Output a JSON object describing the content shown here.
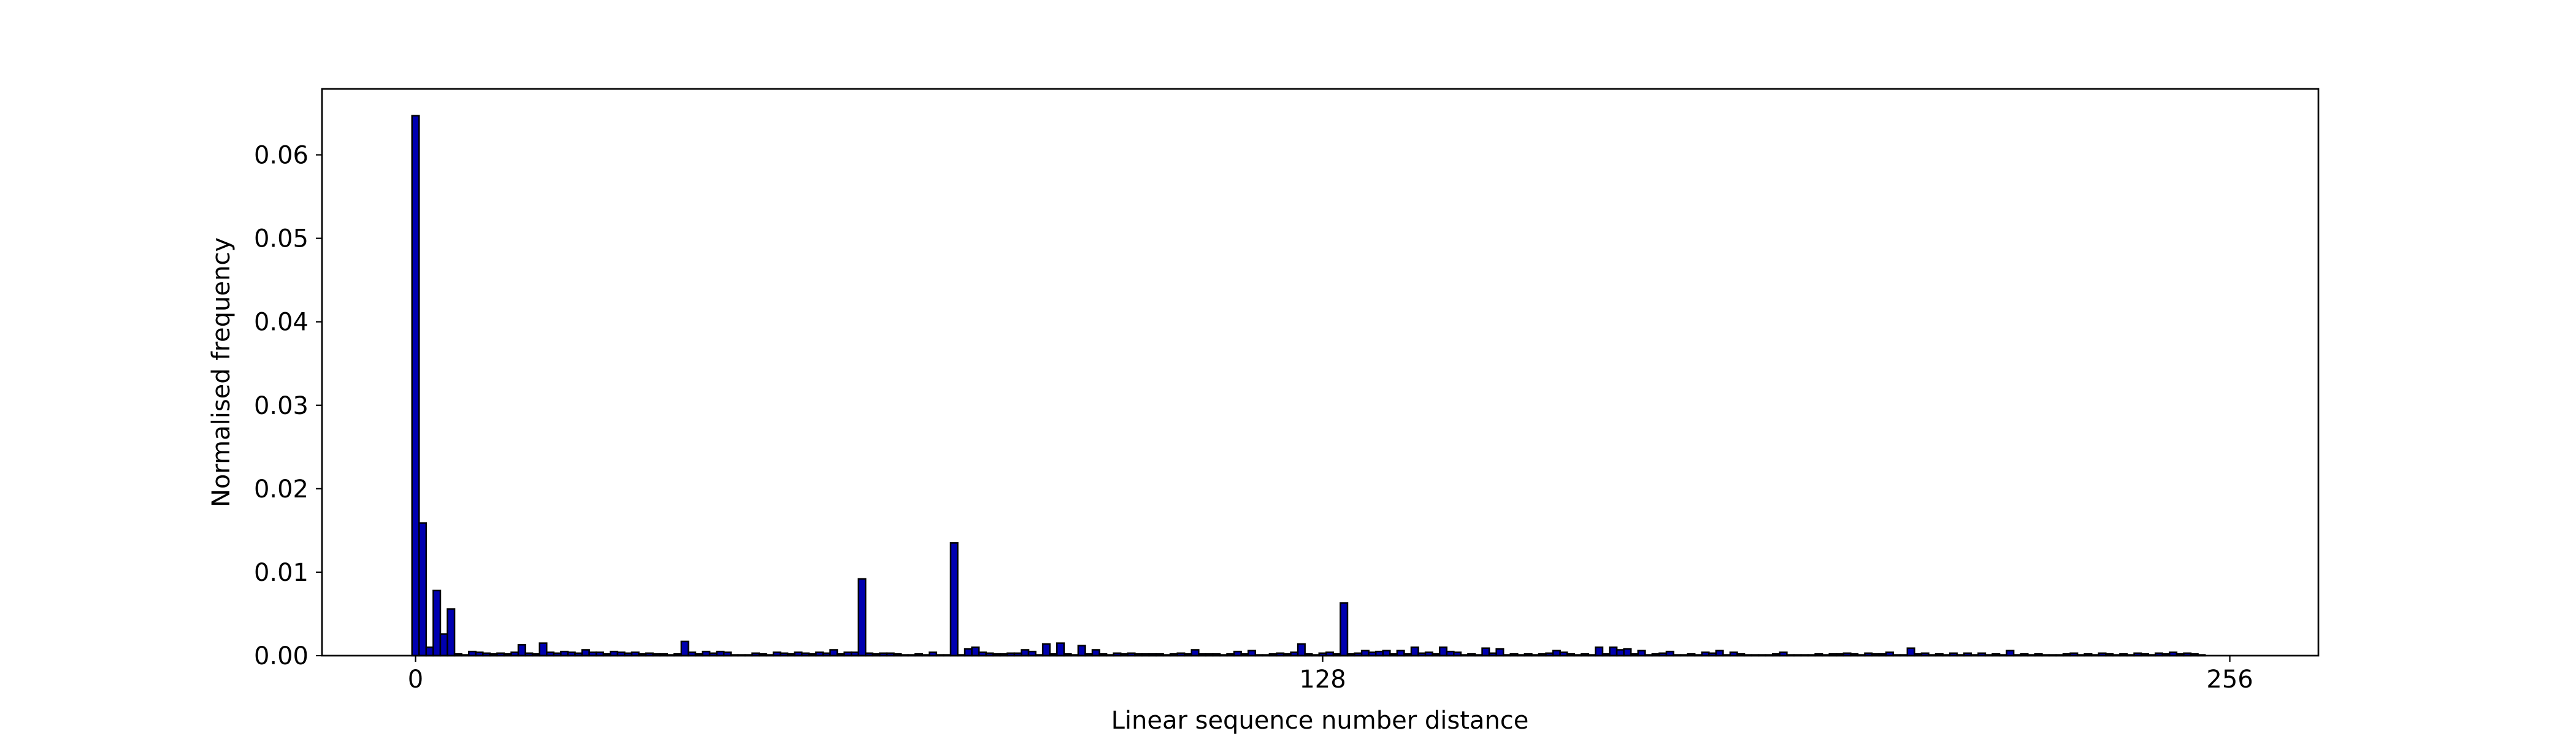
{
  "chart_data": {
    "type": "histogram",
    "x_label": "Linear sequence number distance",
    "y_label": "Normalised frequency",
    "color": "#0000b0",
    "edge_color": "#000000",
    "bins": [
      -0.5,
      0.5,
      1.5,
      2.5,
      3.5,
      4.5,
      5.5,
      6.5,
      7.5,
      8.5,
      9.5,
      10.5,
      11.5,
      12.5,
      13.5,
      14.5,
      15.5,
      16.5,
      17.5,
      18.5,
      19.5,
      20.5,
      21.5,
      22.5,
      23.5,
      24.5,
      25.5,
      26.5,
      27.5,
      28.5,
      29.5,
      30.5,
      31.5,
      32.5,
      33.5,
      34.5,
      35.5,
      36.5,
      37.5,
      38.5,
      39.5,
      40.5,
      41.5,
      42.5,
      43.5,
      44.5,
      45.5,
      46.5,
      47.5,
      48.5,
      49.5,
      50.5,
      51.5,
      52.5,
      53.5,
      54.5,
      55.5,
      56.5,
      57.5,
      58.5,
      59.5,
      60.5,
      61.5,
      62.5,
      63.5,
      64.5,
      65.5,
      66.5,
      67.5,
      68.5,
      69.5,
      70.5,
      71.5,
      72.5,
      73.5,
      74.5,
      75.5,
      76.5,
      77.5,
      78.5,
      79.5,
      80.5,
      81.5,
      82.5,
      83.5,
      84.5,
      85.5,
      86.5,
      87.5,
      88.5,
      89.5,
      90.5,
      91.5,
      92.5,
      93.5,
      94.5,
      95.5,
      96.5,
      97.5,
      98.5,
      99.5,
      100.5,
      101.5,
      102.5,
      103.5,
      104.5,
      105.5,
      106.5,
      107.5,
      108.5,
      109.5,
      110.5,
      111.5,
      112.5,
      113.5,
      114.5,
      115.5,
      116.5,
      117.5,
      118.5,
      119.5,
      120.5,
      121.5,
      122.5,
      123.5,
      124.5,
      125.5,
      126.5,
      127.5,
      128.5,
      129.5,
      130.5,
      131.5,
      132.5,
      133.5,
      134.5,
      135.5,
      136.5,
      137.5,
      138.5,
      139.5,
      140.5,
      141.5,
      142.5,
      143.5,
      144.5,
      145.5,
      146.5,
      147.5,
      148.5,
      149.5,
      150.5,
      151.5,
      152.5,
      153.5,
      154.5,
      155.5,
      156.5,
      157.5,
      158.5,
      159.5,
      160.5,
      161.5,
      162.5,
      163.5,
      164.5,
      165.5,
      166.5,
      167.5,
      168.5,
      169.5,
      170.5,
      171.5,
      172.5,
      173.5,
      174.5,
      175.5,
      176.5,
      177.5,
      178.5,
      179.5,
      180.5,
      181.5,
      182.5,
      183.5,
      184.5,
      185.5,
      186.5,
      187.5,
      188.5,
      189.5,
      190.5,
      191.5,
      192.5,
      193.5,
      194.5,
      195.5,
      196.5,
      197.5,
      198.5,
      199.5,
      200.5,
      201.5,
      202.5,
      203.5,
      204.5,
      205.5,
      206.5,
      207.5,
      208.5,
      209.5,
      210.5,
      211.5,
      212.5,
      213.5,
      214.5,
      215.5,
      216.5,
      217.5,
      218.5,
      219.5,
      220.5,
      221.5,
      222.5,
      223.5,
      224.5,
      225.5,
      226.5,
      227.5,
      228.5,
      229.5,
      230.5,
      231.5,
      232.5,
      233.5,
      234.5,
      235.5,
      236.5,
      237.5,
      238.5,
      239.5,
      240.5,
      241.5,
      242.5,
      243.5,
      244.5,
      245.5,
      246.5,
      247.5,
      248.5,
      249.5,
      250.5,
      251.5,
      252.5,
      253.5,
      254.5,
      255.5,
      256.5
    ],
    "values": [
      0.0647,
      0.0159,
      0.001,
      0.0078,
      0.0026,
      0.0056,
      0.0002,
      0.0001,
      0.0005,
      0.0004,
      0.0003,
      0.0002,
      0.0003,
      0.0002,
      0.0004,
      0.0013,
      0.0003,
      0.0002,
      0.0015,
      0.0004,
      0.0003,
      0.0005,
      0.0004,
      0.0003,
      0.0007,
      0.0004,
      0.0004,
      0.0002,
      0.0005,
      0.0004,
      0.0003,
      0.0004,
      0.0002,
      0.0003,
      0.0002,
      0.0002,
      0.0001,
      0.0002,
      0.0017,
      0.0004,
      0.0002,
      0.0005,
      0.0003,
      0.0005,
      0.0004,
      0.0001,
      0.0001,
      0.0001,
      0.0003,
      0.0002,
      0.0001,
      0.0004,
      0.0003,
      0.0002,
      0.0004,
      0.0003,
      0.0002,
      0.0004,
      0.0003,
      0.0007,
      0.0002,
      0.0004,
      0.0004,
      0.0092,
      0.0003,
      0.0002,
      0.0003,
      0.0003,
      0.0002,
      0.0001,
      0.0001,
      0.0002,
      0.0001,
      0.0004,
      0.0001,
      0.0001,
      0.0135,
      0.0001,
      0.0008,
      0.001,
      0.0004,
      0.0003,
      0.0002,
      0.0002,
      0.0003,
      0.0003,
      0.0007,
      0.0005,
      0.0001,
      0.0014,
      0.0002,
      0.0015,
      0.0002,
      0.0001,
      0.0012,
      0.0002,
      0.0007,
      0.0002,
      0.0001,
      0.0003,
      0.0002,
      0.0003,
      0.0002,
      0.0002,
      0.0002,
      0.0002,
      0.0001,
      0.0002,
      0.0003,
      0.0002,
      0.0007,
      0.0002,
      0.0002,
      0.0002,
      0.0001,
      0.0002,
      0.0005,
      0.0002,
      0.0006,
      0.0001,
      0.0001,
      0.0002,
      0.0003,
      0.0002,
      0.0004,
      0.0014,
      0.0002,
      0.0001,
      0.0003,
      0.0004,
      0.0002,
      0.0063,
      0.0002,
      0.0003,
      0.0006,
      0.0004,
      0.0005,
      0.0006,
      0.0002,
      0.0006,
      0.0002,
      0.001,
      0.0003,
      0.0004,
      0.0002,
      0.001,
      0.0005,
      0.0004,
      0.0001,
      0.0002,
      0.0001,
      0.0009,
      0.0003,
      0.0008,
      0.0001,
      0.0002,
      0.0001,
      0.0002,
      0.0001,
      0.0002,
      0.0003,
      0.0006,
      0.0004,
      0.0002,
      0.0001,
      0.0002,
      0.0001,
      0.001,
      0.0002,
      0.001,
      0.0007,
      0.0008,
      0.0002,
      0.0006,
      0.0001,
      0.0002,
      0.0003,
      0.0005,
      0.0001,
      0.0001,
      0.0002,
      0.0001,
      0.0004,
      0.0003,
      0.0006,
      0.0001,
      0.0004,
      0.0002,
      0.0001,
      0.0001,
      0.0001,
      0.0001,
      0.0002,
      0.0004,
      0.0001,
      0.0001,
      0.0001,
      0.0001,
      0.0002,
      0.0001,
      0.0002,
      0.0002,
      0.0003,
      0.0002,
      0.0001,
      0.0003,
      0.0002,
      0.0002,
      0.0004,
      0.0001,
      0.0001,
      0.0009,
      0.0002,
      0.0003,
      0.0001,
      0.0002,
      0.0001,
      0.0003,
      0.0001,
      0.0003,
      0.0001,
      0.0003,
      0.0001,
      0.0002,
      0.0001,
      0.0006,
      0.0001,
      0.0002,
      0.0001,
      0.0002,
      0.0001,
      0.0001,
      0.0001,
      0.0002,
      0.0003,
      0.0001,
      0.0002,
      0.0001,
      0.0003,
      0.0002,
      0.0001,
      0.0002,
      0.0001,
      0.0003,
      0.0002,
      0.0001,
      0.0003,
      0.0002,
      0.0004,
      0.0002,
      0.0003,
      0.0002,
      0.0001,
      0,
      0,
      0,
      0
    ],
    "xlim": [
      -13.2,
      268.5
    ],
    "xticks": [
      0,
      128,
      256
    ],
    "ylim": [
      0,
      0.0679
    ],
    "yticks": [
      {
        "value": 0,
        "label": "0.00"
      },
      0.01,
      0.02,
      0.03,
      0.04,
      0.05,
      0.06
    ]
  }
}
